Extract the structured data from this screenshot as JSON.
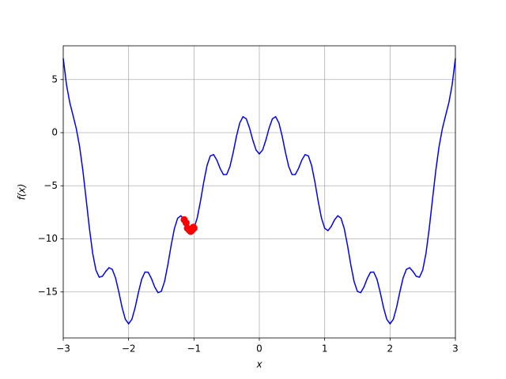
{
  "chart_data": {
    "type": "line",
    "xlabel": "x",
    "ylabel": "f(x)",
    "xlim": [
      -3,
      3
    ],
    "ylim": [
      -19.33,
      8.18
    ],
    "xticks": [
      {
        "value": -3,
        "label": "−3"
      },
      {
        "value": -2,
        "label": "−2"
      },
      {
        "value": -1,
        "label": "−1"
      },
      0,
      1,
      2,
      3
    ],
    "yticks": [
      5,
      0,
      {
        "value": -5,
        "label": "−5"
      },
      {
        "value": -10,
        "label": "−10"
      },
      {
        "value": -15,
        "label": "−15"
      }
    ],
    "grid": true,
    "series": [
      {
        "type": "line",
        "color": "#0000ff",
        "x": [
          -3,
          -2.95,
          -2.9,
          -2.85,
          -2.8,
          -2.75,
          -2.7,
          -2.65,
          -2.6,
          -2.55,
          -2.5,
          -2.45,
          -2.4,
          -2.35,
          -2.3,
          -2.25,
          -2.2,
          -2.15,
          -2.1,
          -2.05,
          -2,
          -1.95,
          -1.9,
          -1.85,
          -1.8,
          -1.75,
          -1.7,
          -1.65,
          -1.6,
          -1.55,
          -1.5,
          -1.45,
          -1.4,
          -1.35,
          -1.3,
          -1.25,
          -1.2,
          -1.15,
          -1.1,
          -1.05,
          -1,
          -0.95,
          -0.9,
          -0.85,
          -0.8,
          -0.75,
          -0.7,
          -0.65,
          -0.6,
          -0.55,
          -0.5,
          -0.45,
          -0.4,
          -0.35,
          -0.3,
          -0.25,
          -0.2,
          -0.15,
          -0.1,
          -0.05,
          0,
          0.05,
          0.1,
          0.15,
          0.2,
          0.25,
          0.3,
          0.35,
          0.4,
          0.45,
          0.5,
          0.55,
          0.6,
          0.65,
          0.7,
          0.75,
          0.8,
          0.85,
          0.9,
          0.95,
          1,
          1.05,
          1.1,
          1.15,
          1.2,
          1.25,
          1.3,
          1.35,
          1.4,
          1.45,
          1.5,
          1.55,
          1.6,
          1.65,
          1.7,
          1.75,
          1.8,
          1.85,
          1.9,
          1.95,
          2,
          2.05,
          2.1,
          2.15,
          2.2,
          2.25,
          2.3,
          2.35,
          2.4,
          2.45,
          2.5,
          2.55,
          2.6,
          2.65,
          2.7,
          2.75,
          2.8,
          2.85,
          2.9,
          2.95,
          3
        ],
        "values": [
          7,
          4.496,
          2.83,
          1.613,
          0.364,
          -1.309,
          -3.558,
          -6.247,
          -9,
          -11.356,
          -12.938,
          -13.608,
          -13.52,
          -13.064,
          -12.718,
          -12.871,
          -13.676,
          -14.995,
          -16.45,
          -17.577,
          -18,
          -17.579,
          -16.466,
          -15.049,
          -13.804,
          -13.121,
          -13.15,
          -13.75,
          -14.544,
          -15.066,
          -14.938,
          -14.018,
          -12.456,
          -10.641,
          -9.046,
          -8.059,
          -7.828,
          -8.213,
          -8.834,
          -9.223,
          -9,
          -8.024,
          -6.442,
          -4.64,
          -3.092,
          -2.184,
          -2.062,
          -2.584,
          -3.368,
          -3.947,
          -3.938,
          -3.197,
          -1.872,
          -0.347,
          0.906,
          1.504,
          1.3,
          0.439,
          -0.698,
          -1.638,
          -2,
          -1.638,
          -0.698,
          0.439,
          1.3,
          1.504,
          0.906,
          -0.347,
          -1.872,
          -3.197,
          -3.938,
          -3.947,
          -3.368,
          -2.584,
          -2.062,
          -2.184,
          -3.092,
          -4.64,
          -6.442,
          -8.024,
          -9,
          -9.223,
          -8.834,
          -8.213,
          -7.828,
          -8.059,
          -9.046,
          -10.641,
          -12.456,
          -14.018,
          -14.938,
          -15.066,
          -14.544,
          -13.75,
          -13.15,
          -13.121,
          -13.804,
          -15.049,
          -16.466,
          -17.579,
          -18,
          -17.577,
          -16.45,
          -14.995,
          -13.676,
          -12.871,
          -12.718,
          -13.064,
          -13.52,
          -13.608,
          -12.938,
          -11.356,
          -9,
          -6.247,
          -3.558,
          -1.309,
          0.364,
          1.613,
          2.83,
          4.496,
          7
        ]
      },
      {
        "type": "scatter",
        "color": "#ff0000",
        "x": [
          -1.15,
          -1.12,
          -1.1,
          -1.07,
          -1.05,
          -1.03,
          -1.01,
          -1.0
        ],
        "values": [
          -8.2,
          -8.5,
          -9.0,
          -9.2,
          -9.3,
          -9.2,
          -8.9,
          -9.0
        ]
      }
    ]
  }
}
